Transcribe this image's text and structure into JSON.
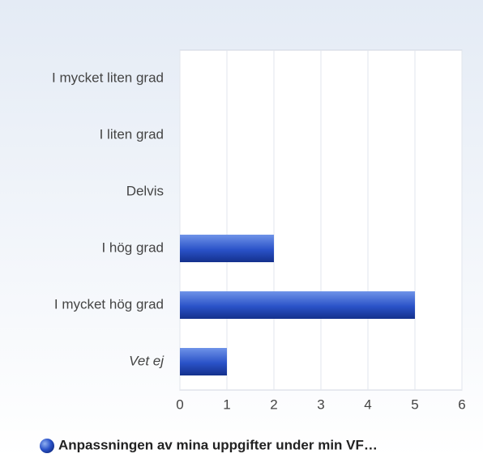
{
  "chart_data": {
    "type": "bar",
    "orientation": "horizontal",
    "categories": [
      "I mycket liten grad",
      "I liten grad",
      "Delvis",
      "I hög grad",
      "I mycket hög grad",
      "Vet ej"
    ],
    "series": [
      {
        "name": "Anpassningen av mina uppgifter under min VF…",
        "color": "#2a52c8",
        "values": [
          0,
          0,
          0,
          2,
          5,
          1
        ]
      }
    ],
    "xlim": [
      0,
      6
    ],
    "xticks": [
      0,
      1,
      2,
      3,
      4,
      5,
      6
    ],
    "grid": true,
    "legend": "bottom"
  }
}
